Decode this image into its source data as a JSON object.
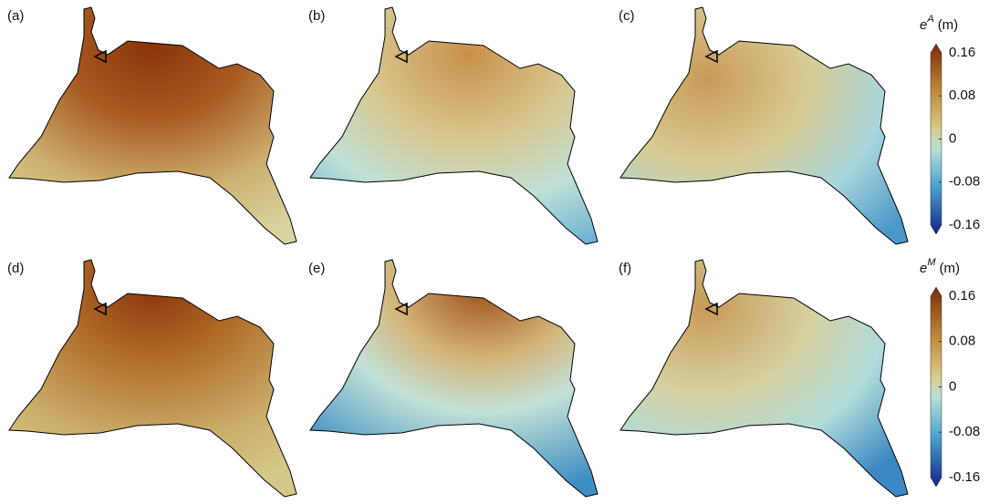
{
  "panels": [
    {
      "label": "(a)"
    },
    {
      "label": "(b)"
    },
    {
      "label": "(c)"
    },
    {
      "label": "(d)"
    },
    {
      "label": "(e)"
    },
    {
      "label": "(f)"
    }
  ],
  "colorbars": [
    {
      "symbol": "e",
      "superscript": "A",
      "unit": "(m)",
      "lim": [
        -0.16,
        0.16
      ],
      "ticks": [
        0.16,
        0.08,
        0,
        -0.08,
        -0.16
      ]
    },
    {
      "symbol": "e",
      "superscript": "M",
      "unit": "(m)",
      "lim": [
        -0.16,
        0.16
      ],
      "ticks": [
        0.16,
        0.08,
        0,
        -0.08,
        -0.16
      ]
    }
  ]
}
